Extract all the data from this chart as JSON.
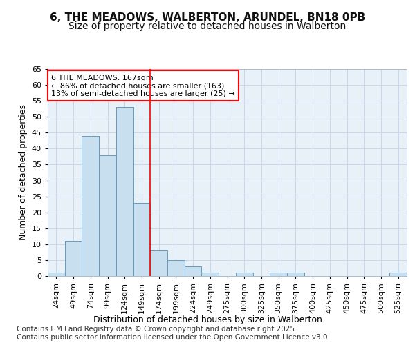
{
  "title_line1": "6, THE MEADOWS, WALBERTON, ARUNDEL, BN18 0PB",
  "title_line2": "Size of property relative to detached houses in Walberton",
  "xlabel": "Distribution of detached houses by size in Walberton",
  "ylabel": "Number of detached properties",
  "footer_line1": "Contains HM Land Registry data © Crown copyright and database right 2025.",
  "footer_line2": "Contains public sector information licensed under the Open Government Licence v3.0.",
  "annotation_line1": "6 THE MEADOWS: 167sqm",
  "annotation_line2": "← 86% of detached houses are smaller (163)",
  "annotation_line3": "13% of semi-detached houses are larger (25) →",
  "bar_labels": [
    "24sqm",
    "49sqm",
    "74sqm",
    "99sqm",
    "124sqm",
    "149sqm",
    "174sqm",
    "199sqm",
    "224sqm",
    "249sqm",
    "275sqm",
    "300sqm",
    "325sqm",
    "350sqm",
    "375sqm",
    "400sqm",
    "425sqm",
    "450sqm",
    "475sqm",
    "500sqm",
    "525sqm"
  ],
  "bar_values": [
    1,
    11,
    44,
    38,
    53,
    23,
    8,
    5,
    3,
    1,
    0,
    1,
    0,
    1,
    1,
    0,
    0,
    0,
    0,
    0,
    1
  ],
  "bar_color": "#c8dff0",
  "bar_edge_color": "#6699bb",
  "bar_width": 1.0,
  "red_line_x": 6.0,
  "ylim": [
    0,
    65
  ],
  "yticks": [
    0,
    5,
    10,
    15,
    20,
    25,
    30,
    35,
    40,
    45,
    50,
    55,
    60,
    65
  ],
  "grid_color": "#c8d8ea",
  "plot_bg_color": "#e8f0f8",
  "fig_bg_color": "#ffffff",
  "title1_fontsize": 11,
  "title2_fontsize": 10,
  "axis_label_fontsize": 9,
  "tick_fontsize": 8,
  "annotation_fontsize": 8,
  "footer_fontsize": 7.5
}
